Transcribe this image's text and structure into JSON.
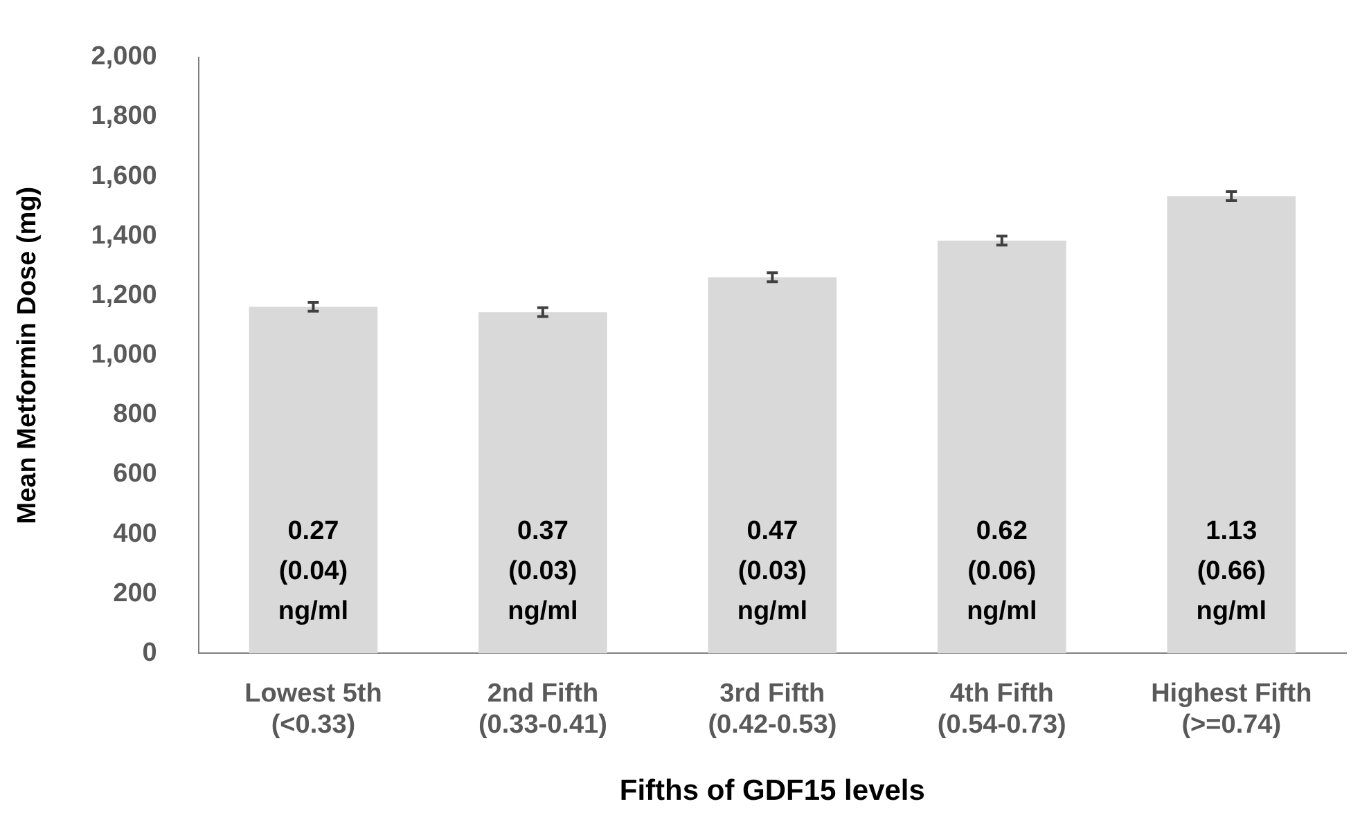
{
  "chart_data": {
    "type": "bar",
    "xlabel": "Fifths of GDF15 levels",
    "ylabel": "Mean Metformin Dose (mg)",
    "categories": [
      "Lowest 5th\n(<0.33)",
      "2nd Fifth\n(0.33-0.41)",
      "3rd Fifth\n(0.42-0.53)",
      "4th Fifth\n(0.54-0.73)",
      "Highest Fifth\n(>=0.74)"
    ],
    "values": [
      1163,
      1145,
      1262,
      1385,
      1534
    ],
    "errors": [
      15,
      15,
      15,
      15,
      15
    ],
    "color": "#d9d9d9",
    "ylim": [
      0,
      2000
    ],
    "yticks": [
      {
        "value": 0,
        "label": "0"
      },
      {
        "value": 200,
        "label": "200"
      },
      {
        "value": 400,
        "label": "400"
      },
      {
        "value": 600,
        "label": "600"
      },
      {
        "value": 800,
        "label": "800"
      },
      {
        "value": 1000,
        "label": "1,000"
      },
      {
        "value": 1200,
        "label": "1,200"
      },
      {
        "value": 1400,
        "label": "1,400"
      },
      {
        "value": 1600,
        "label": "1,600"
      },
      {
        "value": 1800,
        "label": "1,800"
      },
      {
        "value": 2000,
        "label": "2,000"
      }
    ],
    "grid": false,
    "legend": false,
    "annotations": [
      "0.27\n(0.04)\nng/ml",
      "0.37\n(0.03)\nng/ml",
      "0.47\n(0.03)\nng/ml",
      "0.62\n(0.06)\nng/ml",
      "1.13\n(0.66)\nng/ml"
    ]
  }
}
